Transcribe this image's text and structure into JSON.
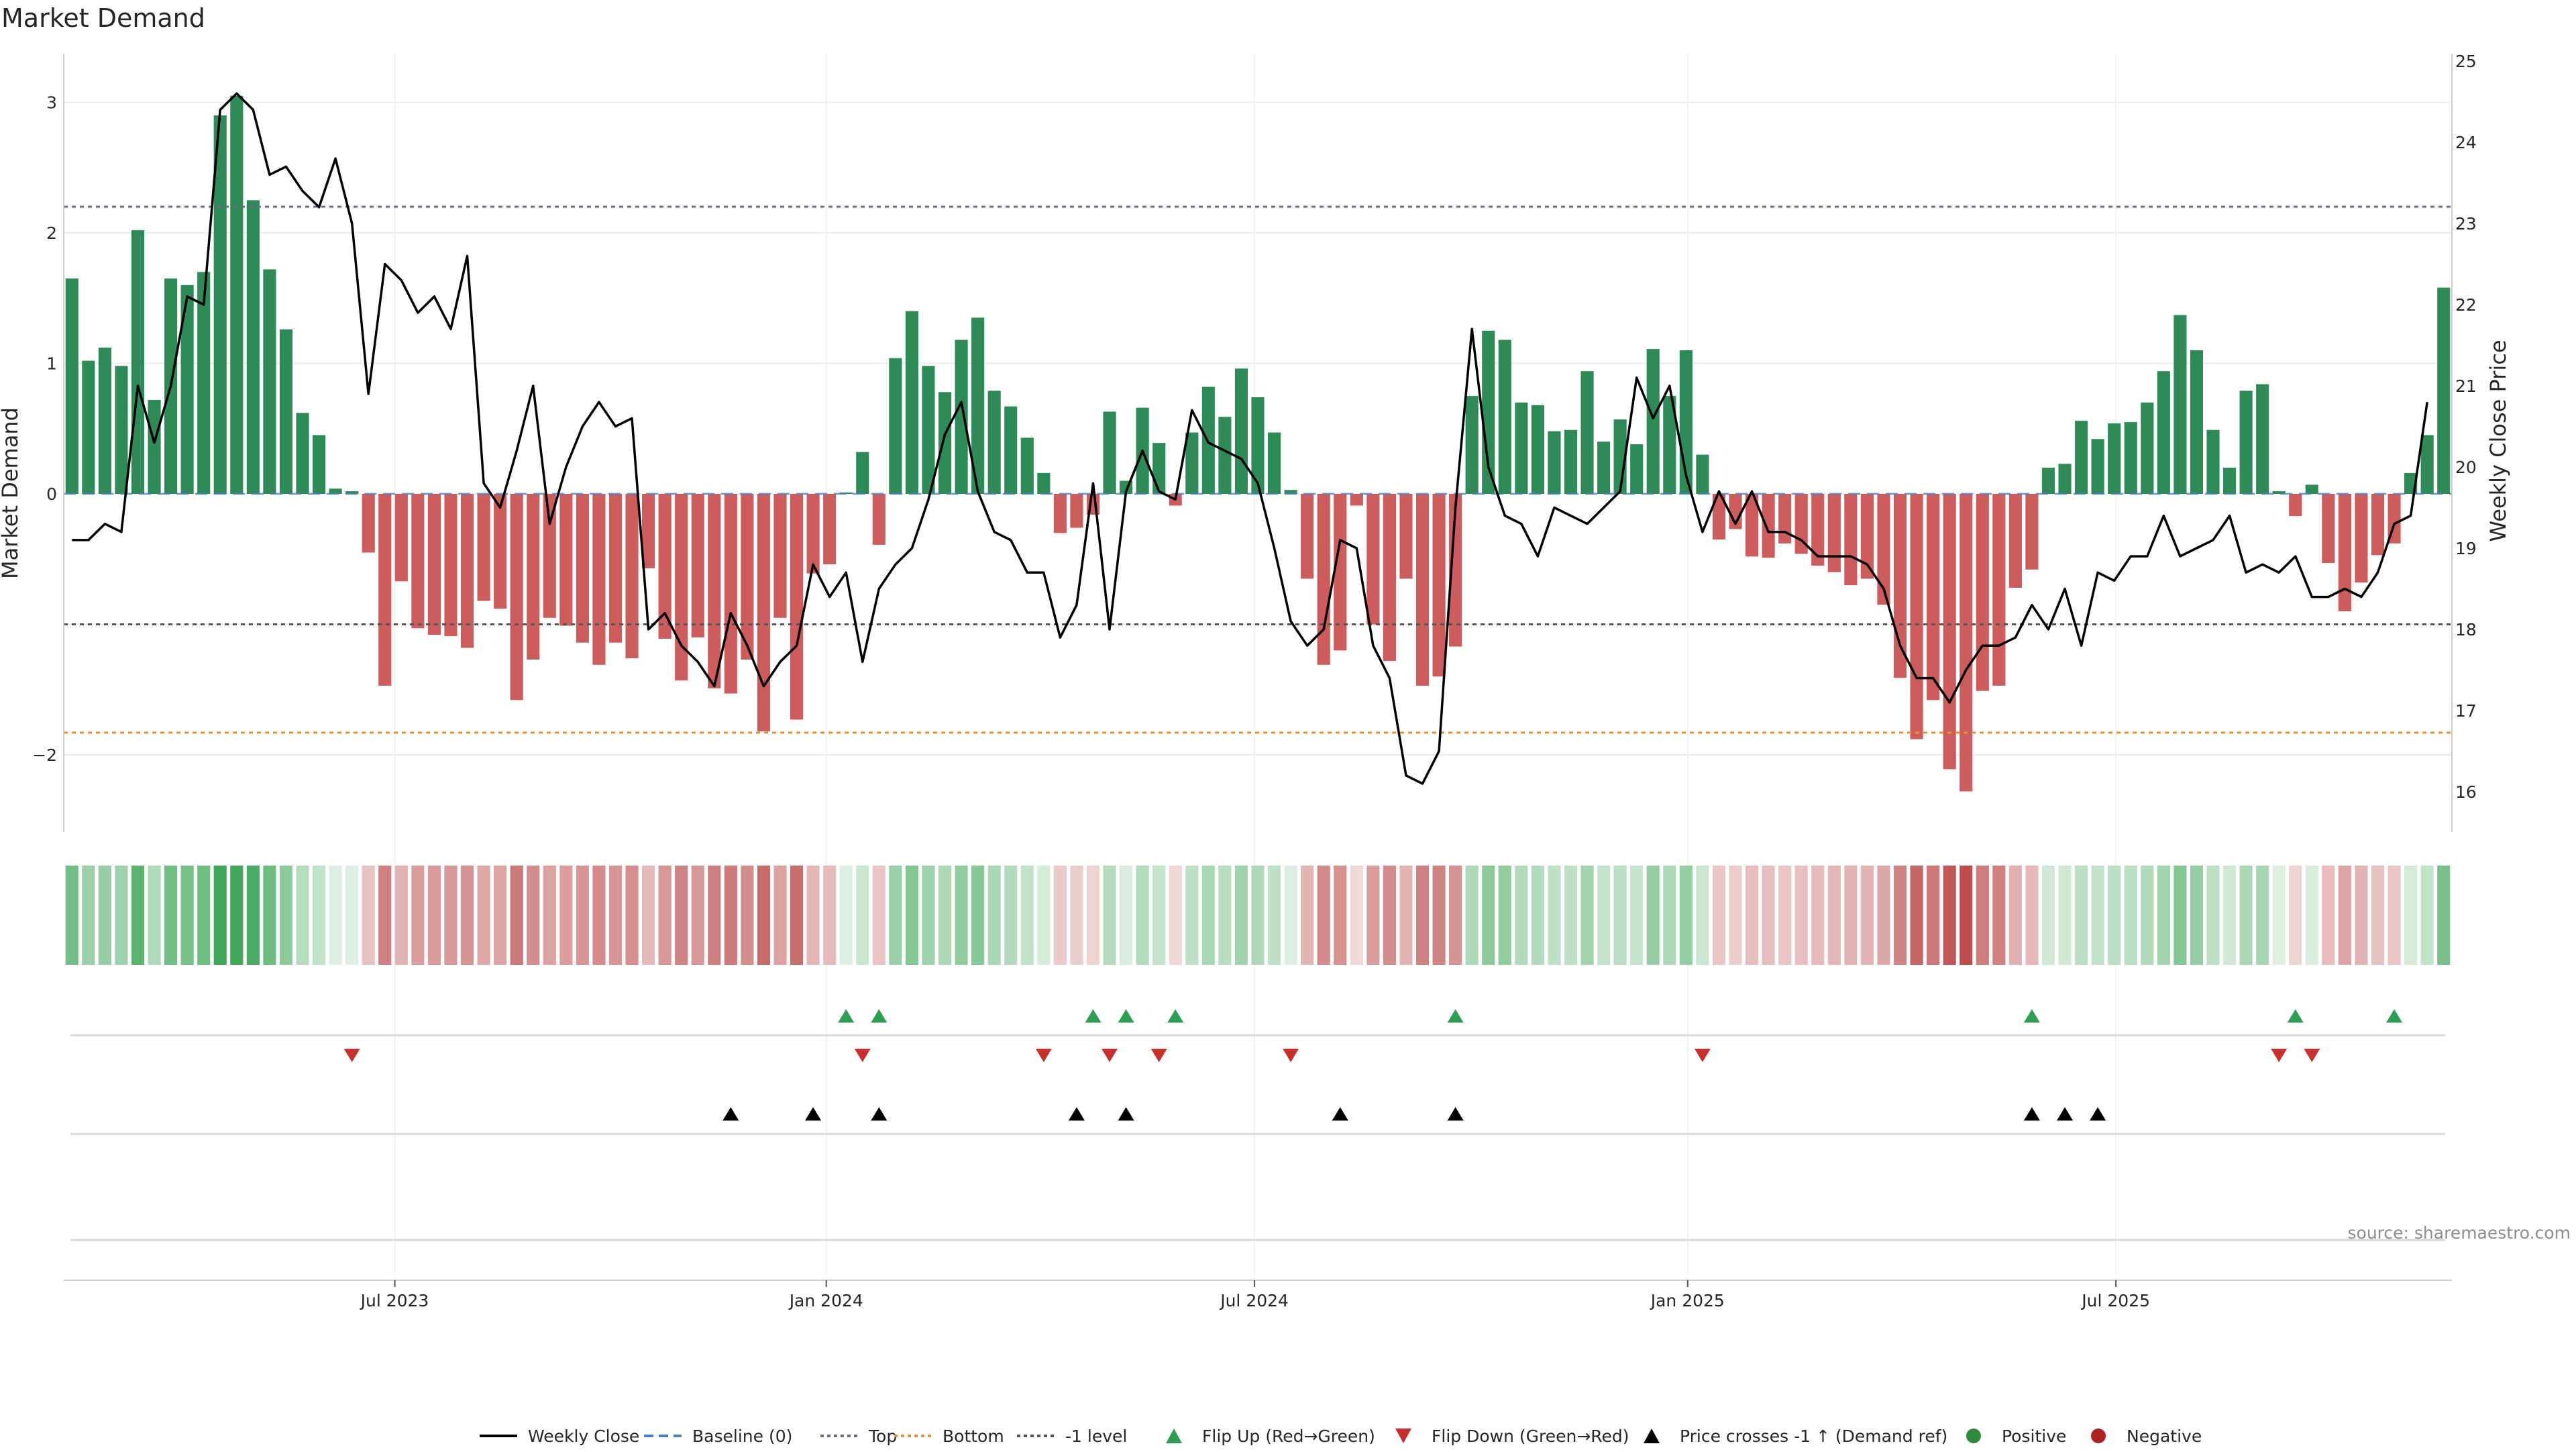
{
  "page": {
    "title": "Market Demand",
    "source": "source: sharemaestro.com"
  },
  "axes": {
    "left_title": "Market Demand",
    "right_title": "Weekly Close Price",
    "left_ticks": [
      "3",
      "2",
      "1",
      "0",
      "−2"
    ],
    "right_ticks": [
      "25",
      "24",
      "23",
      "22",
      "21",
      "20",
      "19",
      "18",
      "17",
      "16"
    ],
    "x_ticks": [
      "Jul 2023",
      "Jan 2024",
      "Jul 2024",
      "Jan 2025",
      "Jul 2025"
    ]
  },
  "legend": [
    {
      "label": "Weekly Close",
      "icon": "solid-line",
      "color": "#000000"
    },
    {
      "label": "Baseline (0)",
      "icon": "dashed-line",
      "color": "#4a7fc1"
    },
    {
      "label": "Top",
      "icon": "dotted-line",
      "color": "#6b6b8a"
    },
    {
      "label": "Bottom",
      "icon": "dotted-line",
      "color": "#e69138"
    },
    {
      "label": "-1 level",
      "icon": "dotted-line",
      "color": "#555555"
    },
    {
      "label": "Flip Up (Red→Green)",
      "icon": "triangle-up",
      "color": "#2e9e55"
    },
    {
      "label": "Flip Down (Green→Red)",
      "icon": "triangle-down",
      "color": "#c8302e"
    },
    {
      "label": "Price crosses -1 ↑ (Demand ref)",
      "icon": "triangle-up",
      "color": "#000000"
    },
    {
      "label": "Positive",
      "icon": "dot",
      "color": "#2e8b3e"
    },
    {
      "label": "Negative",
      "icon": "dot",
      "color": "#b22222"
    }
  ],
  "chart_data": {
    "type": "bar",
    "title": "Market Demand",
    "ylabel": "Market Demand",
    "y2label": "Weekly Close Price",
    "ylim": [
      -2.6,
      3.3
    ],
    "y2lim": [
      15.7,
      25.2
    ],
    "reference_lines": {
      "baseline": 0,
      "top": 2.2,
      "bottom": -1.83,
      "minus_one_level": -1
    },
    "x_start": "2023-02-06",
    "x_step": "1 week",
    "demand": [
      1.65,
      1.02,
      1.12,
      0.98,
      2.02,
      0.72,
      1.65,
      1.6,
      1.7,
      2.9,
      3.05,
      2.25,
      1.72,
      1.26,
      0.62,
      0.45,
      0.04,
      0.02,
      -0.45,
      -1.47,
      -0.67,
      -1.03,
      -1.08,
      -1.09,
      -1.18,
      -0.82,
      -0.88,
      -1.58,
      -1.27,
      -0.95,
      -1.01,
      -1.14,
      -1.31,
      -1.14,
      -1.26,
      -0.57,
      -1.11,
      -1.43,
      -1.1,
      -1.49,
      -1.53,
      -1.27,
      -1.82,
      -0.95,
      -1.73,
      -0.61,
      -0.54,
      0.01,
      0.32,
      -0.39,
      1.04,
      1.4,
      0.98,
      0.78,
      1.18,
      1.35,
      0.79,
      0.67,
      0.43,
      0.16,
      -0.3,
      -0.26,
      -0.16,
      0.63,
      0.1,
      0.66,
      0.39,
      -0.09,
      0.47,
      0.82,
      0.59,
      0.96,
      0.74,
      0.47,
      0.03,
      -0.65,
      -1.31,
      -1.2,
      -0.09,
      -1.0,
      -1.28,
      -0.65,
      -1.47,
      -1.4,
      -1.17,
      0.75,
      1.25,
      1.18,
      0.7,
      0.68,
      0.48,
      0.49,
      0.94,
      0.4,
      0.57,
      0.38,
      1.11,
      0.75,
      1.1,
      0.3,
      -0.35,
      -0.27,
      -0.48,
      -0.49,
      -0.38,
      -0.46,
      -0.55,
      -0.6,
      -0.7,
      -0.65,
      -0.85,
      -1.41,
      -1.88,
      -1.58,
      -2.11,
      -2.28,
      -1.51,
      -1.47,
      -0.72,
      -0.58,
      0.2,
      0.23,
      0.56,
      0.42,
      0.54,
      0.55,
      0.7,
      0.94,
      1.37,
      1.1,
      0.49,
      0.2,
      0.79,
      0.84,
      0.02,
      -0.17,
      0.07,
      -0.53,
      -0.9,
      -0.68,
      -0.47,
      -0.38,
      0.16,
      0.45,
      1.58
    ],
    "weekly_close": [
      19.1,
      19.1,
      19.3,
      19.2,
      21.0,
      20.3,
      21.0,
      22.1,
      22.0,
      24.4,
      24.6,
      24.4,
      23.6,
      23.7,
      23.4,
      23.2,
      23.8,
      23.0,
      20.9,
      22.5,
      22.3,
      21.9,
      22.1,
      21.7,
      22.6,
      19.8,
      19.5,
      20.2,
      21.0,
      19.3,
      20.0,
      20.5,
      20.8,
      20.5,
      20.6,
      18.0,
      18.2,
      17.8,
      17.6,
      17.3,
      18.2,
      17.8,
      17.3,
      17.6,
      17.8,
      18.8,
      18.4,
      18.7,
      17.6,
      18.5,
      18.8,
      19.0,
      19.6,
      20.4,
      20.8,
      19.7,
      19.2,
      19.1,
      18.7,
      18.7,
      17.9,
      18.3,
      19.8,
      18.0,
      19.7,
      20.2,
      19.7,
      19.6,
      20.7,
      20.3,
      20.2,
      20.1,
      19.8,
      19.0,
      18.1,
      17.8,
      18.0,
      19.1,
      19.0,
      17.8,
      17.4,
      16.2,
      16.1,
      16.5,
      19.5,
      21.7,
      20.0,
      19.4,
      19.3,
      18.9,
      19.5,
      19.4,
      19.3,
      19.5,
      19.7,
      21.1,
      20.6,
      21.0,
      19.9,
      19.2,
      19.7,
      19.3,
      19.7,
      19.2,
      19.2,
      19.1,
      18.9,
      18.9,
      18.9,
      18.8,
      18.5,
      17.8,
      17.4,
      17.4,
      17.1,
      17.5,
      17.8,
      17.8,
      17.9,
      18.3,
      18.0,
      18.5,
      17.8,
      18.7,
      18.6,
      18.9,
      18.9,
      19.4,
      18.9,
      19.0,
      19.1,
      19.4,
      18.7,
      18.8,
      18.7,
      18.9,
      18.4,
      18.4,
      18.5,
      18.4,
      18.7,
      19.3,
      19.4,
      20.8
    ],
    "flip_up_weeks": [
      47,
      49,
      62,
      64,
      67,
      84,
      119,
      135,
      141
    ],
    "flip_down_weeks": [
      17,
      48,
      59,
      63,
      66,
      74,
      99,
      134,
      136
    ],
    "price_cross_weeks": [
      40,
      45,
      49,
      61,
      64,
      77,
      84,
      119,
      121,
      123
    ],
    "x_tick_weeks": [
      20.1,
      46.3,
      72.3,
      98.6,
      124.6
    ]
  }
}
